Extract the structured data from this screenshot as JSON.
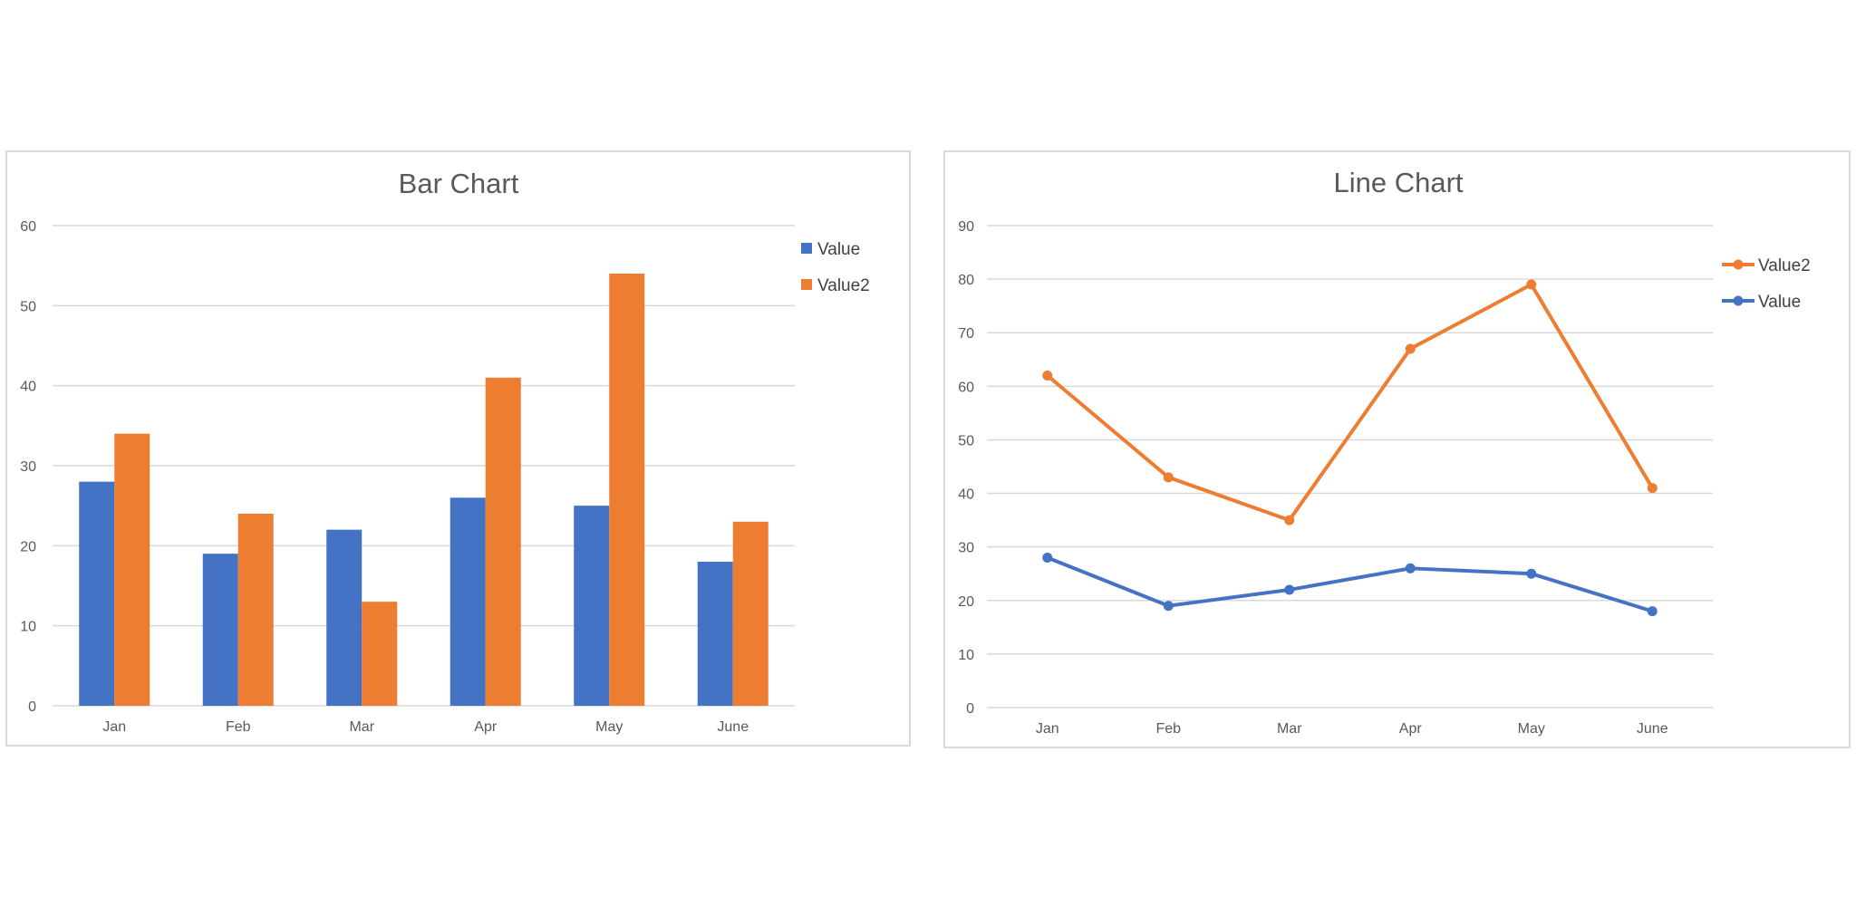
{
  "colors": {
    "value": "#4472C4",
    "value2": "#ED7D31",
    "grid": "#D9D9D9",
    "text": "#595959"
  },
  "chart_data": [
    {
      "type": "bar",
      "title": "Bar Chart",
      "categories": [
        "Jan",
        "Feb",
        "Mar",
        "Apr",
        "May",
        "June"
      ],
      "series": [
        {
          "name": "Value",
          "values": [
            28,
            19,
            22,
            26,
            25,
            18
          ],
          "color": "#4472C4"
        },
        {
          "name": "Value2",
          "values": [
            34,
            24,
            13,
            41,
            54,
            23
          ],
          "color": "#ED7D31"
        }
      ],
      "xlabel": "",
      "ylabel": "",
      "ylim": [
        0,
        60
      ],
      "yticks": [
        0,
        10,
        20,
        30,
        40,
        50,
        60
      ],
      "grid": true,
      "legend_position": "right"
    },
    {
      "type": "line",
      "title": "Line Chart",
      "categories": [
        "Jan",
        "Feb",
        "Mar",
        "Apr",
        "May",
        "June"
      ],
      "series": [
        {
          "name": "Value2",
          "values": [
            62,
            43,
            35,
            67,
            79,
            41
          ],
          "color": "#ED7D31"
        },
        {
          "name": "Value",
          "values": [
            28,
            19,
            22,
            26,
            25,
            18
          ],
          "color": "#4472C4"
        }
      ],
      "xlabel": "",
      "ylabel": "",
      "ylim": [
        0,
        90
      ],
      "yticks": [
        0,
        10,
        20,
        30,
        40,
        50,
        60,
        70,
        80,
        90
      ],
      "grid": true,
      "markers": true,
      "legend_position": "right"
    }
  ]
}
